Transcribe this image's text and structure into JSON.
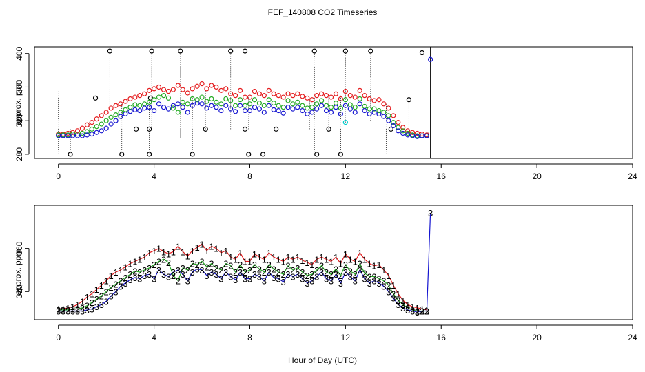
{
  "chart_data": [
    {
      "type": "scatter",
      "title": "FEF_140808  CO2 Timeseries",
      "ylabel": "approx. ppm",
      "xlim": [
        -1,
        24
      ],
      "ylim": [
        275,
        408
      ],
      "xticks": [
        0,
        4,
        8,
        12,
        16,
        20,
        24
      ],
      "xtick_labels": [
        "0",
        "4",
        "8",
        "12",
        "16",
        "20",
        "24"
      ],
      "yticks": [
        280,
        320,
        360,
        400
      ],
      "ytick_labels": [
        "280",
        "320",
        "360",
        "400"
      ],
      "colors": {
        "s1": "#e41a1c",
        "s2": "#22aa22",
        "s3": "#1515d0",
        "range": "#000000",
        "cyan": "#00cccc"
      },
      "series": [
        {
          "name": "1",
          "color": "#e41a1c",
          "x": [
            0.0,
            0.2,
            0.4,
            0.6,
            0.8,
            1.0,
            1.2,
            1.4,
            1.6,
            1.8,
            2.0,
            2.2,
            2.4,
            2.6,
            2.8,
            3.0,
            3.2,
            3.4,
            3.6,
            3.8,
            4.0,
            4.2,
            4.4,
            4.6,
            4.8,
            5.0,
            5.2,
            5.4,
            5.6,
            5.8,
            6.0,
            6.2,
            6.4,
            6.6,
            6.8,
            7.0,
            7.2,
            7.4,
            7.6,
            7.8,
            8.0,
            8.2,
            8.4,
            8.6,
            8.8,
            9.0,
            9.2,
            9.4,
            9.6,
            9.8,
            10.0,
            10.2,
            10.4,
            10.6,
            10.8,
            11.0,
            11.2,
            11.4,
            11.6,
            11.8,
            12.0,
            12.2,
            12.4,
            12.6,
            12.8,
            13.0,
            13.2,
            13.4,
            13.6,
            13.8,
            14.0,
            14.2,
            14.4,
            14.6,
            14.8,
            15.0,
            15.2,
            15.4
          ],
          "y": [
            304,
            304,
            305,
            306,
            308,
            311,
            315,
            318,
            322,
            326,
            330,
            335,
            338,
            340,
            343,
            346,
            348,
            350,
            352,
            356,
            358,
            360,
            357,
            355,
            357,
            362,
            357,
            353,
            358,
            361,
            364,
            358,
            362,
            360,
            356,
            358,
            352,
            350,
            356,
            348,
            348,
            355,
            352,
            350,
            356,
            352,
            350,
            348,
            352,
            350,
            352,
            349,
            347,
            345,
            350,
            352,
            350,
            348,
            352,
            346,
            355,
            350,
            348,
            356,
            350,
            346,
            344,
            345,
            340,
            335,
            326,
            318,
            312,
            308,
            306,
            305,
            304,
            303
          ]
        },
        {
          "name": "2",
          "color": "#22aa22",
          "x": [
            0.0,
            0.2,
            0.4,
            0.6,
            0.8,
            1.0,
            1.2,
            1.4,
            1.6,
            1.8,
            2.0,
            2.2,
            2.4,
            2.6,
            2.8,
            3.0,
            3.2,
            3.4,
            3.6,
            3.8,
            4.0,
            4.2,
            4.4,
            4.6,
            4.8,
            5.0,
            5.2,
            5.4,
            5.6,
            5.8,
            6.0,
            6.2,
            6.4,
            6.6,
            6.8,
            7.0,
            7.2,
            7.4,
            7.6,
            7.8,
            8.0,
            8.2,
            8.4,
            8.6,
            8.8,
            9.0,
            9.2,
            9.4,
            9.6,
            9.8,
            10.0,
            10.2,
            10.4,
            10.6,
            10.8,
            11.0,
            11.2,
            11.4,
            11.6,
            11.8,
            12.0,
            12.2,
            12.4,
            12.6,
            12.8,
            13.0,
            13.2,
            13.4,
            13.6,
            13.8,
            14.0,
            14.2,
            14.4,
            14.6,
            14.8,
            15.0,
            15.2,
            15.4
          ],
          "y": [
            303,
            303,
            303,
            304,
            304,
            305,
            307,
            310,
            313,
            316,
            320,
            324,
            327,
            330,
            333,
            336,
            339,
            338,
            340,
            342,
            345,
            348,
            350,
            347,
            335,
            330,
            342,
            340,
            346,
            345,
            348,
            343,
            346,
            342,
            340,
            346,
            344,
            338,
            345,
            338,
            340,
            345,
            341,
            338,
            345,
            341,
            338,
            336,
            344,
            340,
            342,
            338,
            335,
            336,
            340,
            344,
            338,
            336,
            341,
            335,
            345,
            339,
            336,
            346,
            337,
            334,
            334,
            332,
            330,
            326,
            318,
            312,
            308,
            305,
            303,
            302,
            302,
            302
          ]
        },
        {
          "name": "3",
          "color": "#1515d0",
          "x": [
            0.0,
            0.2,
            0.4,
            0.6,
            0.8,
            1.0,
            1.2,
            1.4,
            1.6,
            1.8,
            2.0,
            2.2,
            2.4,
            2.6,
            2.8,
            3.0,
            3.2,
            3.4,
            3.6,
            3.8,
            4.0,
            4.2,
            4.4,
            4.6,
            4.8,
            5.0,
            5.2,
            5.4,
            5.6,
            5.8,
            6.0,
            6.2,
            6.4,
            6.6,
            6.8,
            7.0,
            7.2,
            7.4,
            7.6,
            7.8,
            8.0,
            8.2,
            8.4,
            8.6,
            8.8,
            9.0,
            9.2,
            9.4,
            9.6,
            9.8,
            10.0,
            10.2,
            10.4,
            10.6,
            10.8,
            11.0,
            11.2,
            11.4,
            11.6,
            11.8,
            12.0,
            12.2,
            12.4,
            12.6,
            12.8,
            13.0,
            13.2,
            13.4,
            13.6,
            13.8,
            14.0,
            14.2,
            14.4,
            14.6,
            14.8,
            15.0,
            15.2,
            15.4,
            15.55
          ],
          "y": [
            302,
            302,
            302,
            302,
            302,
            302,
            303,
            304,
            306,
            308,
            311,
            316,
            320,
            325,
            328,
            331,
            333,
            332,
            335,
            336,
            332,
            340,
            336,
            334,
            338,
            340,
            336,
            330,
            338,
            341,
            340,
            335,
            338,
            336,
            332,
            338,
            334,
            331,
            338,
            332,
            332,
            336,
            334,
            330,
            338,
            333,
            332,
            329,
            336,
            334,
            336,
            332,
            328,
            330,
            334,
            338,
            332,
            330,
            336,
            328,
            338,
            334,
            330,
            340,
            332,
            328,
            330,
            328,
            325,
            320,
            314,
            308,
            305,
            303,
            302,
            301,
            302,
            302,
            393
          ]
        }
      ],
      "ranges": {
        "x": [
          0.0,
          0.5,
          1.3,
          2.15,
          2.65,
          3.25,
          3.8,
          3.9,
          5.1,
          5.6,
          6.15,
          7.2,
          7.8,
          7.95,
          8.55,
          10.5,
          10.7,
          11.3,
          11.8,
          12.0,
          13.05,
          13.7,
          14.65,
          15.2,
          15.45
        ],
        "ymin": [
          280,
          280,
          305,
          315,
          280,
          310,
          280,
          310,
          300,
          280,
          310,
          310,
          280,
          310,
          280,
          310,
          280,
          310,
          280,
          318,
          320,
          280,
          300,
          300,
          300
        ],
        "ymax": [
          357,
          310,
          320,
          403,
          340,
          345,
          345,
          403,
          403,
          350,
          355,
          403,
          403,
          350,
          350,
          345,
          403,
          350,
          350,
          403,
          403,
          340,
          345,
          401,
          306
        ]
      },
      "range_markers": [
        {
          "x": 0.5,
          "y": 280
        },
        {
          "x": 1.55,
          "y": 347
        },
        {
          "x": 2.15,
          "y": 403
        },
        {
          "x": 2.65,
          "y": 280
        },
        {
          "x": 3.25,
          "y": 310
        },
        {
          "x": 3.8,
          "y": 280
        },
        {
          "x": 3.8,
          "y": 310
        },
        {
          "x": 3.85,
          "y": 347
        },
        {
          "x": 3.9,
          "y": 403
        },
        {
          "x": 5.1,
          "y": 403
        },
        {
          "x": 5.6,
          "y": 280
        },
        {
          "x": 6.15,
          "y": 310
        },
        {
          "x": 7.2,
          "y": 403
        },
        {
          "x": 7.8,
          "y": 403
        },
        {
          "x": 7.8,
          "y": 310
        },
        {
          "x": 7.95,
          "y": 280
        },
        {
          "x": 8.55,
          "y": 280
        },
        {
          "x": 9.1,
          "y": 310
        },
        {
          "x": 10.7,
          "y": 403
        },
        {
          "x": 10.8,
          "y": 280
        },
        {
          "x": 11.3,
          "y": 310
        },
        {
          "x": 11.8,
          "y": 280
        },
        {
          "x": 12.0,
          "y": 403
        },
        {
          "x": 13.05,
          "y": 403
        },
        {
          "x": 13.9,
          "y": 310
        },
        {
          "x": 14.65,
          "y": 345
        },
        {
          "x": 15.2,
          "y": 401
        }
      ],
      "cyan_points": [
        {
          "x": 12.0,
          "y": 318
        }
      ],
      "annotations": [
        {
          "type": "vline",
          "x": 15.55
        }
      ]
    },
    {
      "type": "line",
      "ylabel": "approx. ppm",
      "xlabel": "Hour of Day (UTC)",
      "xlim": [
        -1,
        24
      ],
      "ylim": [
        294,
        400
      ],
      "xticks": [
        0,
        4,
        8,
        12,
        16,
        20,
        24
      ],
      "xtick_labels": [
        "0",
        "4",
        "8",
        "12",
        "16",
        "20",
        "24"
      ],
      "yticks": [
        320,
        360
      ],
      "ytick_labels": [
        "320",
        "360"
      ],
      "marker_labels": [
        "1",
        "2",
        "3"
      ],
      "series": [
        {
          "name": "1",
          "color": "#e41a1c",
          "source_series": 0
        },
        {
          "name": "2",
          "color": "#22aa22",
          "source_series": 1
        },
        {
          "name": "3",
          "color": "#1515d0",
          "source_series": 2
        }
      ]
    }
  ]
}
